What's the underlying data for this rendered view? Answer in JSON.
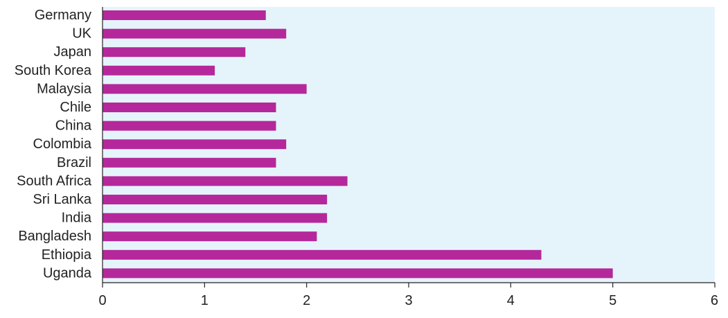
{
  "colors": {
    "plot_background": "#e5f4fb",
    "bar": "#b5289b",
    "axis": "#222222"
  },
  "chart_data": {
    "type": "bar",
    "orientation": "horizontal",
    "title": "",
    "xlabel": "",
    "ylabel": "",
    "xlim": [
      0,
      6
    ],
    "x_ticks": [
      "0",
      "1",
      "2",
      "3",
      "4",
      "5",
      "6"
    ],
    "grid": false,
    "legend": "none",
    "categories": [
      "Germany",
      "UK",
      "Japan",
      "South Korea",
      "Malaysia",
      "Chile",
      "China",
      "Colombia",
      "Brazil",
      "South Africa",
      "Sri Lanka",
      "India",
      "Bangladesh",
      "Ethiopia",
      "Uganda"
    ],
    "values": [
      1.6,
      1.8,
      1.4,
      1.1,
      2.0,
      1.7,
      1.7,
      1.8,
      1.7,
      2.4,
      2.2,
      2.2,
      2.1,
      4.3,
      5.0
    ]
  }
}
